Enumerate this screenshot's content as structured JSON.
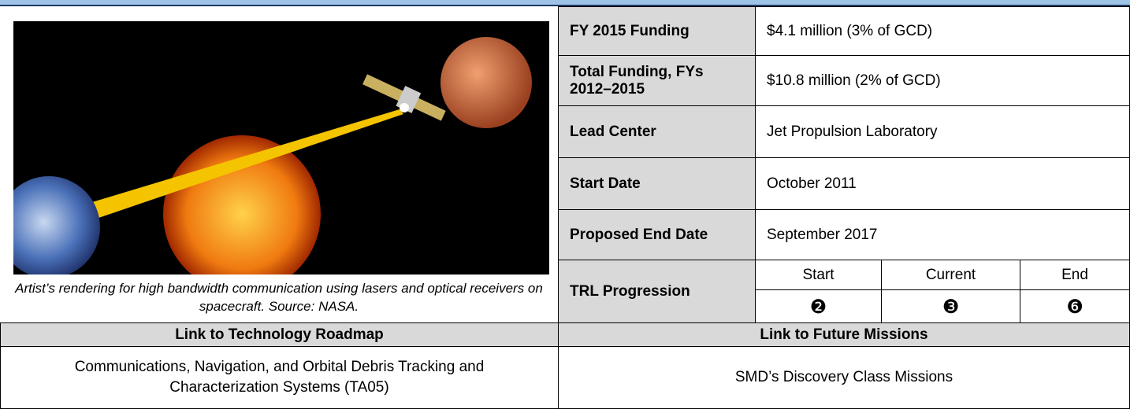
{
  "image": {
    "caption": "Artist’s rendering for high bandwidth communication using lasers and optical receivers on spacecraft.  Source: NASA."
  },
  "table": {
    "rows": [
      {
        "label": "FY 2015 Funding",
        "value": "$4.1 million (3% of GCD)"
      },
      {
        "label": "Total Funding, FYs 2012–2015",
        "value": "$10.8 million (2% of GCD)"
      },
      {
        "label": "Lead Center",
        "value": "Jet Propulsion Laboratory"
      },
      {
        "label": "Start Date",
        "value": "October 2011"
      },
      {
        "label": "Proposed End Date",
        "value": "September 2017"
      }
    ],
    "trl": {
      "label": "TRL Progression",
      "headers": [
        "Start",
        "Current",
        "End"
      ],
      "values": [
        "❷",
        "❸",
        "❻"
      ]
    }
  },
  "links": {
    "headers": [
      "Link to Technology Roadmap",
      "Link to Future Missions"
    ],
    "cells": [
      "Communications, Navigation, and Orbital Debris Tracking and Characterization Systems (TA05)",
      "SMD’s Discovery Class Missions"
    ]
  }
}
